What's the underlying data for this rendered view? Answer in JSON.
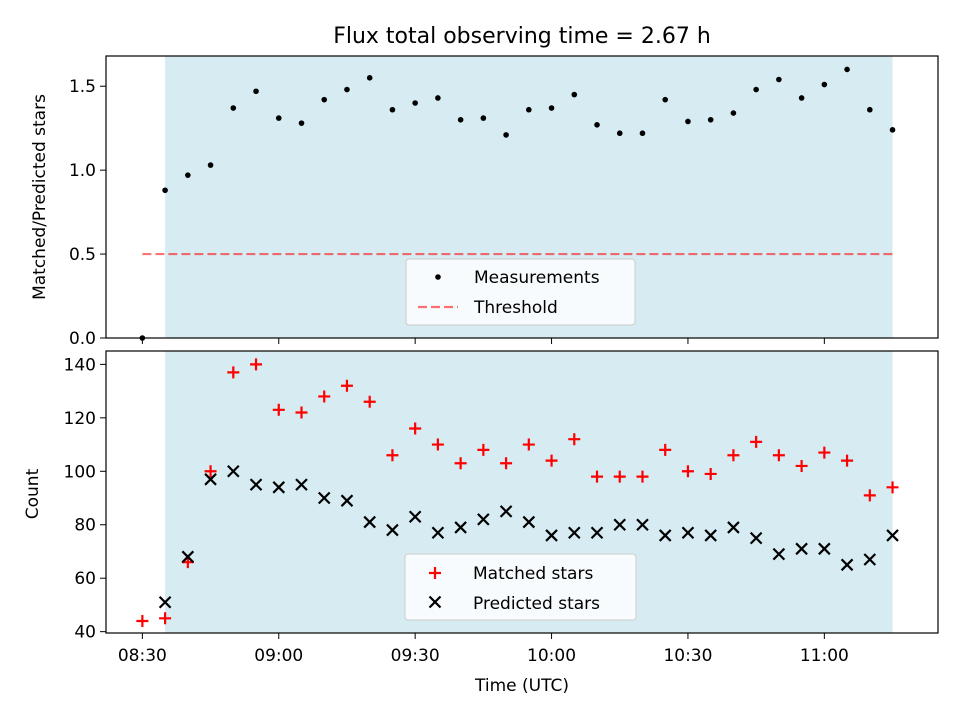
{
  "chart_data": [
    {
      "type": "scatter",
      "title": "Flux total observing time = 2.67 h",
      "xlabel": "",
      "ylabel": "Matched/Predicted stars",
      "ylim": [
        0.0,
        1.68
      ],
      "yticks": [
        "0.0",
        "0.5",
        "1.0",
        "1.5"
      ],
      "x_axis": "time (minutes after 08:00 UTC)",
      "xlim": [
        22,
        205
      ],
      "shaded_interval": [
        35,
        195
      ],
      "shaded_color": "#add8e6",
      "threshold": 0.5,
      "threshold_range": [
        30,
        195
      ],
      "legend": [
        "Measurements",
        "Threshold"
      ],
      "legend_placement": "lower center",
      "series": [
        {
          "name": "Measurements",
          "color": "#000000",
          "marker": "dot",
          "points": [
            [
              30,
              0.0
            ],
            [
              35,
              0.88
            ],
            [
              40,
              0.97
            ],
            [
              45,
              1.03
            ],
            [
              50,
              1.37
            ],
            [
              55,
              1.47
            ],
            [
              60,
              1.31
            ],
            [
              65,
              1.28
            ],
            [
              70,
              1.42
            ],
            [
              75,
              1.48
            ],
            [
              80,
              1.55
            ],
            [
              85,
              1.36
            ],
            [
              90,
              1.4
            ],
            [
              95,
              1.43
            ],
            [
              100,
              1.3
            ],
            [
              105,
              1.31
            ],
            [
              110,
              1.21
            ],
            [
              115,
              1.36
            ],
            [
              120,
              1.37
            ],
            [
              125,
              1.45
            ],
            [
              130,
              1.27
            ],
            [
              135,
              1.22
            ],
            [
              140,
              1.22
            ],
            [
              145,
              1.42
            ],
            [
              150,
              1.29
            ],
            [
              155,
              1.3
            ],
            [
              160,
              1.34
            ],
            [
              165,
              1.48
            ],
            [
              170,
              1.54
            ],
            [
              175,
              1.43
            ],
            [
              180,
              1.51
            ],
            [
              185,
              1.6
            ],
            [
              190,
              1.36
            ],
            [
              195,
              1.24
            ]
          ]
        },
        {
          "name": "Threshold",
          "color": "#ff0000",
          "style": "dashed"
        }
      ]
    },
    {
      "type": "scatter",
      "title": "",
      "xlabel": "Time (UTC)",
      "ylabel": "Count",
      "ylim": [
        39.5,
        145
      ],
      "yticks": [
        "40",
        "60",
        "80",
        "100",
        "120",
        "140"
      ],
      "xticks": [
        "08:30",
        "09:00",
        "09:30",
        "10:00",
        "10:30",
        "11:00"
      ],
      "xtick_minutes": [
        30,
        60,
        90,
        120,
        150,
        180
      ],
      "xlim": [
        22,
        205
      ],
      "shaded_interval": [
        35,
        195
      ],
      "shaded_color": "#add8e6",
      "legend": [
        "Matched stars",
        "Predicted stars"
      ],
      "legend_placement": "lower center",
      "series": [
        {
          "name": "Matched stars",
          "color": "#ff0000",
          "marker": "plus",
          "points": [
            [
              30,
              44
            ],
            [
              35,
              45
            ],
            [
              40,
              66
            ],
            [
              45,
              100
            ],
            [
              50,
              137
            ],
            [
              55,
              140
            ],
            [
              60,
              123
            ],
            [
              65,
              122
            ],
            [
              70,
              128
            ],
            [
              75,
              132
            ],
            [
              80,
              126
            ],
            [
              85,
              106
            ],
            [
              90,
              116
            ],
            [
              95,
              110
            ],
            [
              100,
              103
            ],
            [
              105,
              108
            ],
            [
              110,
              103
            ],
            [
              115,
              110
            ],
            [
              120,
              104
            ],
            [
              125,
              112
            ],
            [
              130,
              98
            ],
            [
              135,
              98
            ],
            [
              140,
              98
            ],
            [
              145,
              108
            ],
            [
              150,
              100
            ],
            [
              155,
              99
            ],
            [
              160,
              106
            ],
            [
              165,
              111
            ],
            [
              170,
              106
            ],
            [
              175,
              102
            ],
            [
              180,
              107
            ],
            [
              185,
              104
            ],
            [
              190,
              91
            ],
            [
              195,
              94
            ]
          ]
        },
        {
          "name": "Predicted stars",
          "color": "#000000",
          "marker": "x",
          "points": [
            [
              35,
              51
            ],
            [
              40,
              68
            ],
            [
              45,
              97
            ],
            [
              50,
              100
            ],
            [
              55,
              95
            ],
            [
              60,
              94
            ],
            [
              65,
              95
            ],
            [
              70,
              90
            ],
            [
              75,
              89
            ],
            [
              80,
              81
            ],
            [
              85,
              78
            ],
            [
              90,
              83
            ],
            [
              95,
              77
            ],
            [
              100,
              79
            ],
            [
              105,
              82
            ],
            [
              110,
              85
            ],
            [
              115,
              81
            ],
            [
              120,
              76
            ],
            [
              125,
              77
            ],
            [
              130,
              77
            ],
            [
              135,
              80
            ],
            [
              140,
              80
            ],
            [
              145,
              76
            ],
            [
              150,
              77
            ],
            [
              155,
              76
            ],
            [
              160,
              79
            ],
            [
              165,
              75
            ],
            [
              170,
              69
            ],
            [
              175,
              71
            ],
            [
              180,
              71
            ],
            [
              185,
              65
            ],
            [
              190,
              67
            ],
            [
              195,
              76
            ]
          ]
        }
      ]
    }
  ]
}
